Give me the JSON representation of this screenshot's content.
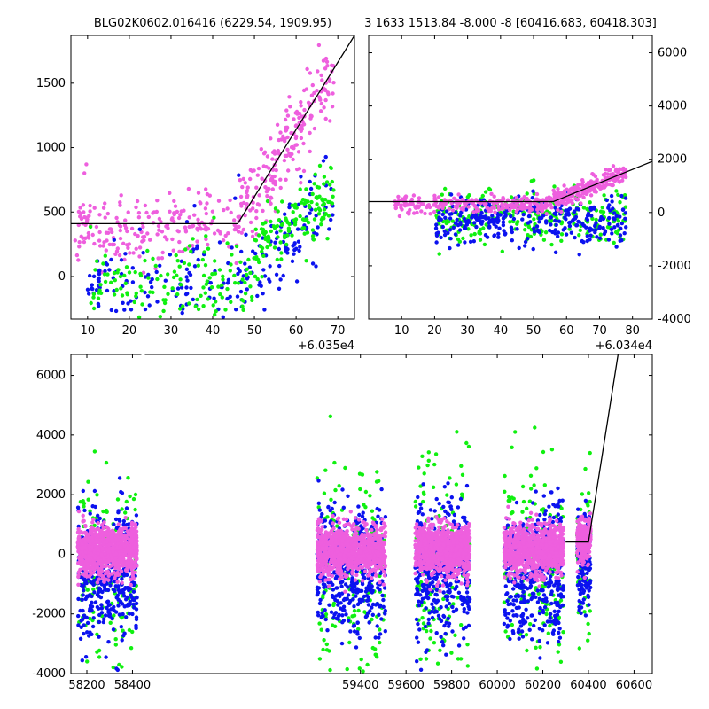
{
  "chart_data": [
    {
      "panel": "top-left",
      "type": "scatter",
      "title": "BLG02K0602.016416 (6229.54, 1909.95)",
      "x_offset_label": "+6.035e4",
      "xlim": [
        6,
        74
      ],
      "ylim": [
        -330,
        1870
      ],
      "xticks": [
        10,
        20,
        30,
        40,
        50,
        60,
        70
      ],
      "yticks": [
        0,
        500,
        1000,
        1500
      ],
      "yaxis_side": "left",
      "model_line": {
        "x": [
          6,
          46,
          74
        ],
        "y": [
          410,
          410,
          1870
        ]
      },
      "series": [
        {
          "color": "#ee5fde",
          "x_range": [
            7,
            69
          ],
          "count": 420,
          "seed": 11,
          "segments": [
            {
              "x": [
                7,
                46
              ],
              "y": [
                0,
                1000
              ],
              "center": 380,
              "spread": 230
            },
            {
              "x": [
                46,
                69
              ],
              "y": [
                200,
                1800
              ],
              "center": "model",
              "spread": 260
            }
          ]
        },
        {
          "color": "#0b12ef",
          "x_range": [
            10,
            69
          ],
          "count": 230,
          "seed": 23,
          "segments": [
            {
              "x": [
                10,
                46
              ],
              "y": [
                -320,
                700
              ],
              "center": -80,
              "spread": 230
            },
            {
              "x": [
                46,
                69
              ],
              "y": [
                -320,
                1200
              ],
              "center": "ramp",
              "spread": 300
            }
          ]
        },
        {
          "color": "#10f010",
          "x_range": [
            10,
            69
          ],
          "count": 280,
          "seed": 37,
          "segments": [
            {
              "x": [
                10,
                50
              ],
              "y": [
                -320,
                700
              ],
              "center": -50,
              "spread": 250
            },
            {
              "x": [
                50,
                69
              ],
              "y": [
                -300,
                1000
              ],
              "center": "ramp2",
              "spread": 200
            }
          ]
        }
      ]
    },
    {
      "panel": "top-right",
      "type": "scatter",
      "title": "3 1633 1513.84 -8.000 -8 [60416.683, 60418.303]",
      "x_offset_label": "+6.034e4",
      "xlim": [
        0,
        86
      ],
      "ylim": [
        -4000,
        6650
      ],
      "xticks": [
        10,
        20,
        30,
        40,
        50,
        60,
        70,
        80
      ],
      "yticks": [
        -4000,
        -2000,
        0,
        2000,
        4000,
        6000
      ],
      "yaxis_side": "right",
      "model_line": {
        "x": [
          0,
          56,
          86
        ],
        "y": [
          410,
          410,
          1920
        ]
      },
      "series": [
        {
          "color": "#10f010",
          "count": 260,
          "seed": 41,
          "segments": [
            {
              "x": [
                20,
                78
              ],
              "y": [
                -3800,
                4000
              ],
              "center": -200,
              "spread": 900
            }
          ]
        },
        {
          "color": "#0b12ef",
          "count": 320,
          "seed": 53,
          "segments": [
            {
              "x": [
                20,
                78
              ],
              "y": [
                -4000,
                1800
              ],
              "center": -300,
              "spread": 750
            }
          ]
        },
        {
          "color": "#ee5fde",
          "count": 480,
          "seed": 67,
          "segments": [
            {
              "x": [
                8,
                56
              ],
              "y": [
                -900,
                1200
              ],
              "center": 300,
              "spread": 250
            },
            {
              "x": [
                56,
                78
              ],
              "y": [
                0,
                2000
              ],
              "center": "model",
              "spread": 260
            }
          ]
        }
      ]
    },
    {
      "panel": "bottom",
      "type": "scatter",
      "title": "",
      "xlim": [
        58130,
        60680
      ],
      "ylim": [
        -4000,
        6700
      ],
      "xticks": [
        58200,
        58400,
        59400,
        59600,
        59800,
        60000,
        60200,
        60400,
        60600
      ],
      "yticks": [
        -4000,
        -2000,
        0,
        2000,
        4000,
        6000
      ],
      "yaxis_side": "left",
      "break_between": [
        58400,
        59000
      ],
      "season_x": [
        [
          58160,
          58420
        ],
        [
          59210,
          59510
        ],
        [
          59640,
          59880
        ],
        [
          60030,
          60290
        ],
        [
          60350,
          60410
        ]
      ],
      "model_line": {
        "x": [
          60300,
          60400,
          60530
        ],
        "y": [
          410,
          410,
          6700
        ]
      },
      "series": [
        {
          "color": "#10f010",
          "count_per_season": 160,
          "seed": 71,
          "center": -600,
          "spread": 1800,
          "ymin": -4000,
          "ymax": 6400
        },
        {
          "color": "#0b12ef",
          "count_per_season": 420,
          "seed": 83,
          "center": -600,
          "spread": 1100,
          "ymin": -4000,
          "ymax": 6600
        },
        {
          "color": "#ee5fde",
          "count_per_season": 900,
          "seed": 97,
          "center": 150,
          "spread": 420,
          "ymin": -1500,
          "ymax": 6600
        }
      ]
    }
  ]
}
